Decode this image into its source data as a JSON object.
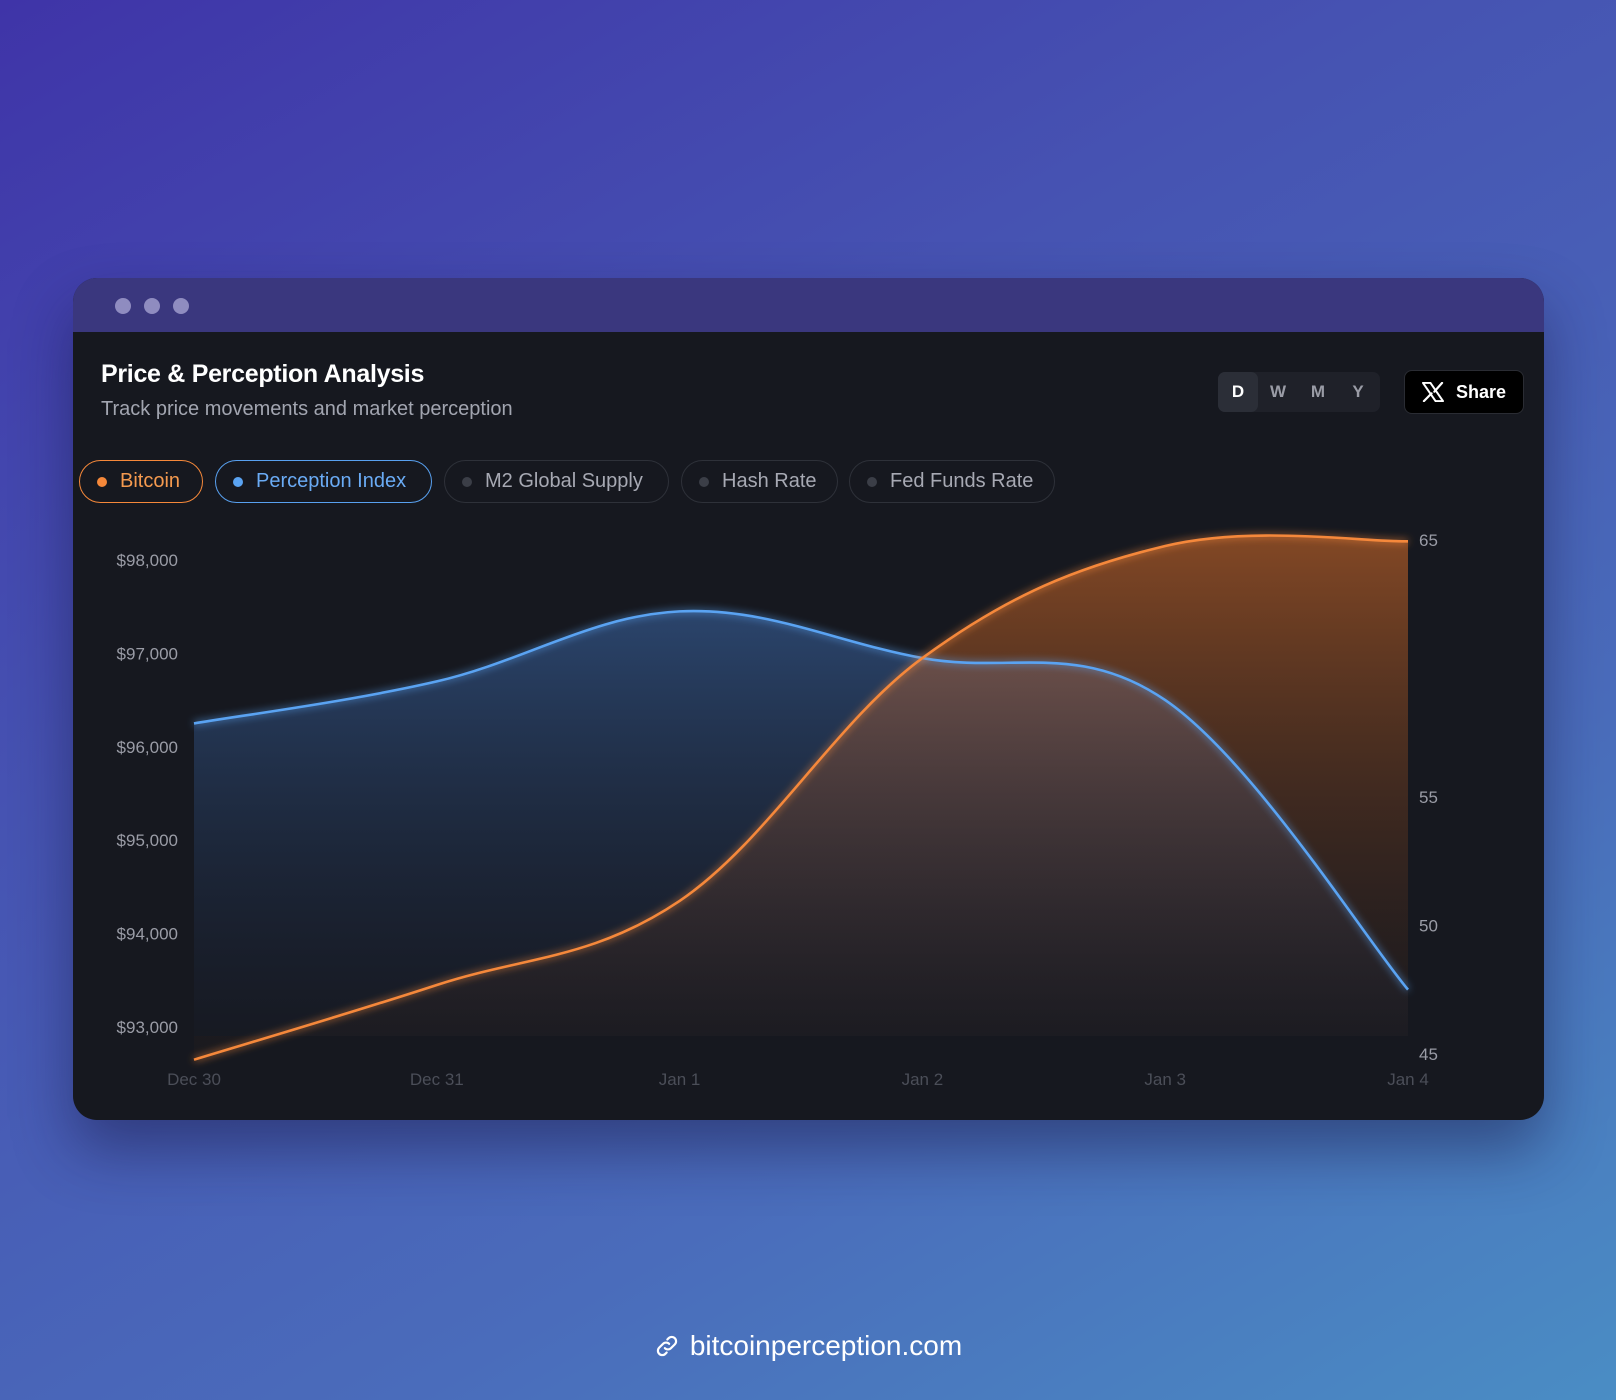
{
  "window": {
    "title": "Price & Perception Analysis",
    "subtitle": "Track price movements and market perception"
  },
  "periods": [
    "D",
    "W",
    "M",
    "Y"
  ],
  "active_period": "D",
  "share": {
    "label": "Share",
    "icon": "x-logo-icon"
  },
  "toggles": [
    {
      "label": "Bitcoin",
      "active": true,
      "color": "#f5883a"
    },
    {
      "label": "Perception Index",
      "active": true,
      "color": "#5aa3f2"
    },
    {
      "label": "M2 Global Supply",
      "active": false
    },
    {
      "label": "Hash Rate",
      "active": false
    },
    {
      "label": "Fed Funds Rate",
      "active": false
    }
  ],
  "footer": {
    "link_text": "bitcoinperception.com",
    "icon": "link-icon"
  },
  "chart_data": {
    "type": "area",
    "x": [
      "Dec 30",
      "Dec 31",
      "Jan 1",
      "Jan 2",
      "Jan 3",
      "Jan 4"
    ],
    "y_left": {
      "ticks": [
        "$93,000",
        "$94,000",
        "$95,000",
        "$96,000",
        "$97,000",
        "$98,000"
      ],
      "range": [
        92650,
        98000
      ]
    },
    "y_right": {
      "ticks": [
        "45",
        "50",
        "55",
        "65"
      ],
      "range": [
        45,
        65
      ]
    },
    "series": [
      {
        "name": "Bitcoin",
        "axis": "left",
        "color": "#f5883a",
        "values": [
          92650,
          93450,
          94350,
          96950,
          98150,
          98200
        ]
      },
      {
        "name": "Perception Index",
        "axis": "left",
        "color": "#5aa3f2",
        "values": [
          96250,
          96700,
          97450,
          96950,
          96500,
          93400
        ]
      }
    ],
    "grid": false
  }
}
